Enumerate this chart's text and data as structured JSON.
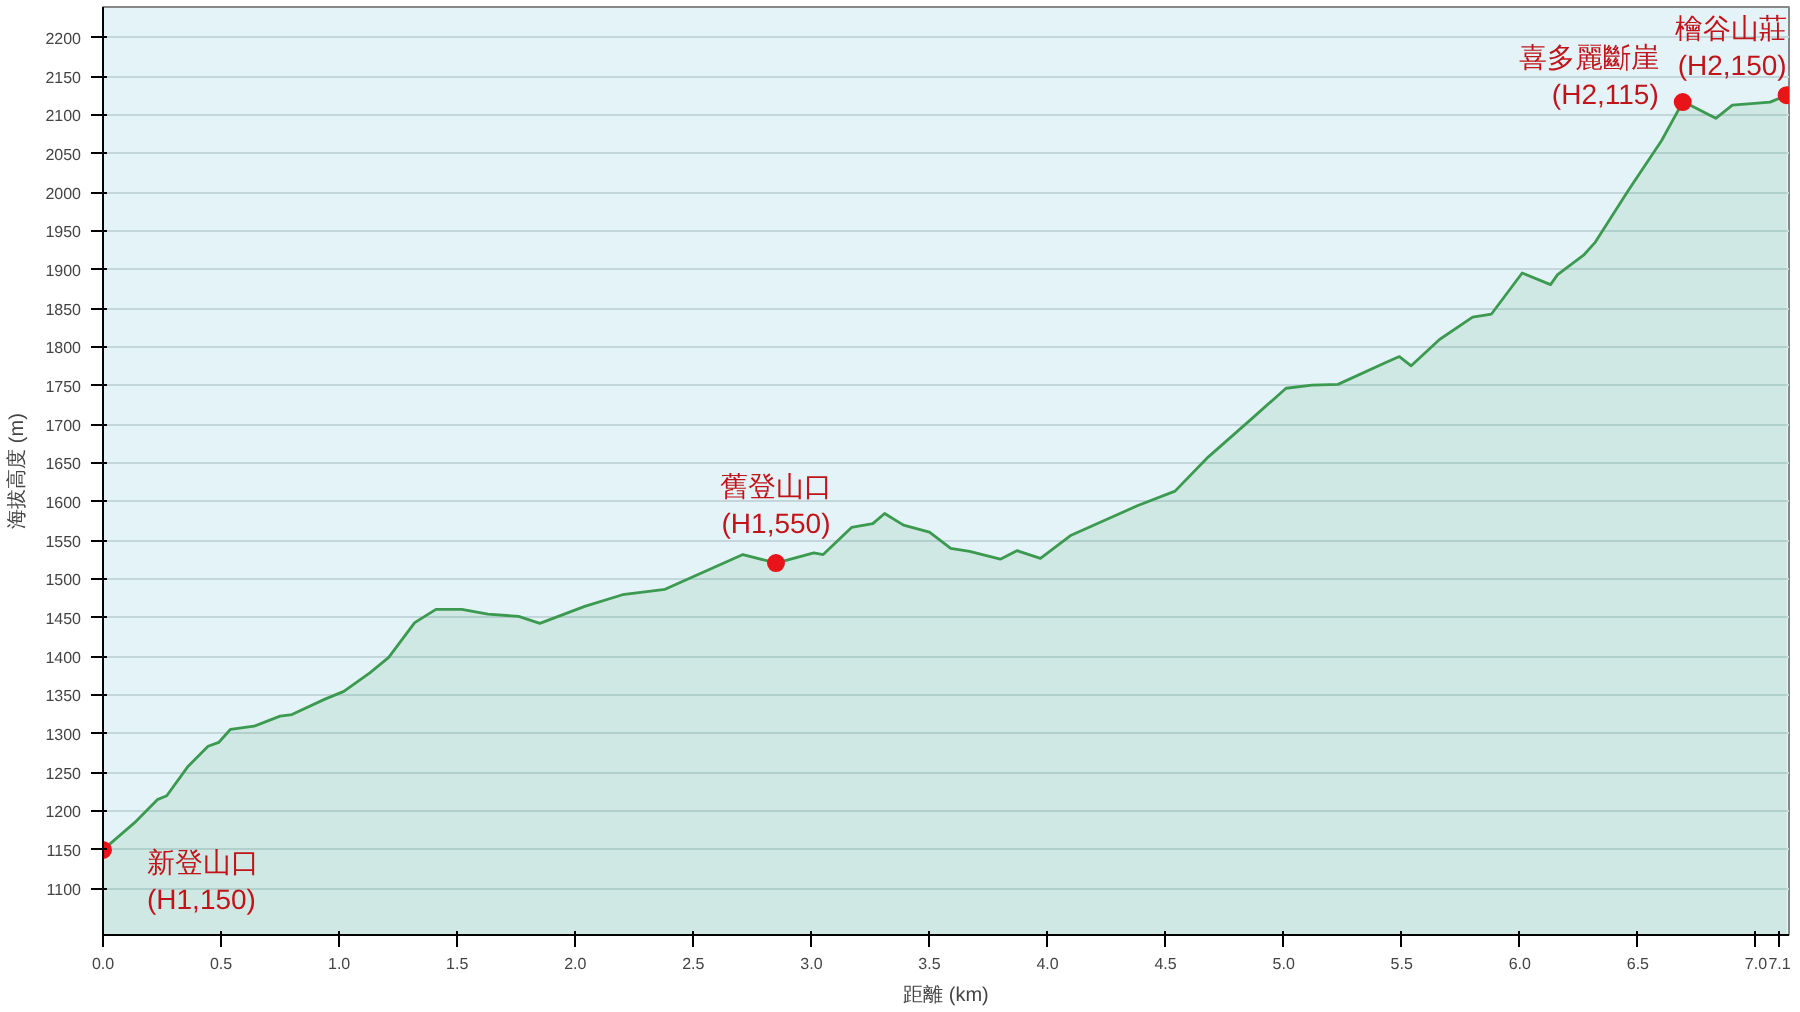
{
  "chart_data": {
    "type": "area",
    "xlabel": "距離 (km)",
    "ylabel": "海拔高度 (m)",
    "xlim": [
      0,
      7.14
    ],
    "ylim": [
      1040,
      2240
    ],
    "xticks": [
      {
        "value": 0,
        "label": "0.0"
      },
      0.5,
      {
        "value": 1,
        "label": "1.0"
      },
      1.5,
      {
        "value": 2,
        "label": "2.0"
      },
      2.5,
      {
        "value": 3,
        "label": "3.0"
      },
      3.5,
      {
        "value": 4,
        "label": "4.0"
      },
      4.5,
      {
        "value": 5,
        "label": "5.0"
      },
      5.5,
      {
        "value": 6,
        "label": "6.0"
      },
      6.5,
      {
        "value": 7,
        "label": "7.0"
      },
      7.1
    ],
    "yticks": [
      1100,
      1150,
      1200,
      1250,
      1300,
      1350,
      1400,
      1450,
      1500,
      1550,
      1600,
      1650,
      1700,
      1750,
      1800,
      1850,
      1900,
      1950,
      2000,
      2050,
      2100,
      2150,
      2200
    ],
    "grid": "y",
    "series": [
      {
        "color": "#3c9a50",
        "x": [
          0,
          0.14,
          0.23,
          0.27,
          0.36,
          0.445,
          0.49,
          0.54,
          0.64,
          0.75,
          0.8,
          0.94,
          1.02,
          1.13,
          1.21,
          1.32,
          1.41,
          1.52,
          1.63,
          1.76,
          1.85,
          2.04,
          2.2,
          2.38,
          2.71,
          2.85,
          3.01,
          3.05,
          3.17,
          3.26,
          3.31,
          3.39,
          3.5,
          3.59,
          3.67,
          3.8,
          3.87,
          3.97,
          4.1,
          4.24,
          4.38,
          4.54,
          4.68,
          4.87,
          5.01,
          5.12,
          5.23,
          5.43,
          5.49,
          5.54,
          5.66,
          5.8,
          5.88,
          6.01,
          6.13,
          6.16,
          6.27,
          6.32,
          6.46,
          6.6,
          6.69,
          6.71,
          6.83,
          6.9,
          7.06,
          7.13
        ],
        "values": [
          1150,
          1187,
          1215,
          1220,
          1258,
          1284,
          1289,
          1306,
          1310,
          1323,
          1325,
          1345,
          1355,
          1379,
          1399,
          1444,
          1461,
          1461,
          1455,
          1452,
          1443,
          1465,
          1480,
          1487,
          1532,
          1521,
          1534,
          1532,
          1567,
          1572,
          1585,
          1570,
          1561,
          1540,
          1536,
          1526,
          1537,
          1527,
          1557,
          1576,
          1595,
          1614,
          1658,
          1709,
          1747,
          1751,
          1752,
          1780,
          1788,
          1776,
          1810,
          1839,
          1843,
          1896,
          1881,
          1894,
          1919,
          1936,
          2003,
          2067,
          2117,
          2115,
          2096,
          2113,
          2117,
          2126
        ]
      },
      {
        "type": "scatter",
        "color": "#e8141a",
        "x": [
          0,
          2.85,
          6.69,
          7.13
        ],
        "values": [
          1150,
          1521,
          2117,
          2126
        ]
      }
    ],
    "annotations": [
      {
        "text": "新登山口\n(H1,150)",
        "x": 0,
        "y": 1150
      },
      {
        "text": "舊登山口\n(H1,550)",
        "x": 2.85,
        "y": 1521
      },
      {
        "text": "喜多麗斷崖\n(H2,115)",
        "x": 6.69,
        "y": 2117
      },
      {
        "text": "檜谷山莊\n(H2,150)",
        "x": 7.13,
        "y": 2126
      }
    ]
  }
}
